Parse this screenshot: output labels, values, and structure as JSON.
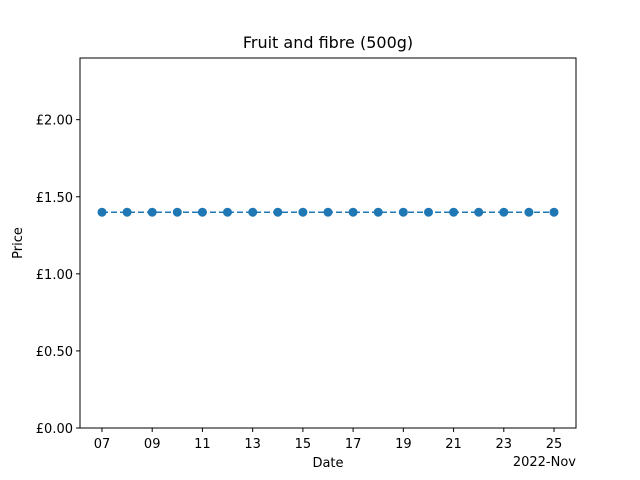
{
  "chart_data": {
    "type": "line",
    "title": "Fruit and fibre (500g)",
    "xlabel": "Date",
    "ylabel": "Price",
    "x_offset_label": "2022-Nov",
    "x": [
      "2022-11-07",
      "2022-11-08",
      "2022-11-09",
      "2022-11-10",
      "2022-11-11",
      "2022-11-12",
      "2022-11-13",
      "2022-11-14",
      "2022-11-15",
      "2022-11-16",
      "2022-11-17",
      "2022-11-18",
      "2022-11-19",
      "2022-11-20",
      "2022-11-21",
      "2022-11-22",
      "2022-11-23",
      "2022-11-24",
      "2022-11-25"
    ],
    "x_ticks": [
      "07",
      "09",
      "11",
      "13",
      "15",
      "17",
      "19",
      "21",
      "23",
      "25"
    ],
    "xlim": [
      "2022-11-06T03:00",
      "2022-11-25T21:00"
    ],
    "series": [
      {
        "color": "#1f77b4",
        "line_style": "dashed",
        "marker": "circle",
        "values": [
          1.4,
          1.4,
          1.4,
          1.4,
          1.4,
          1.4,
          1.4,
          1.4,
          1.4,
          1.4,
          1.4,
          1.4,
          1.4,
          1.4,
          1.4,
          1.4,
          1.4,
          1.4,
          1.4
        ]
      }
    ],
    "ylim": [
      0,
      2.4
    ],
    "y_ticks": [
      0,
      0.5,
      1.0,
      1.5,
      2.0
    ],
    "y_tick_labels": [
      "£0.00",
      "£0.50",
      "£1.00",
      "£1.50",
      "£2.00"
    ],
    "grid": false,
    "legend": "none"
  }
}
